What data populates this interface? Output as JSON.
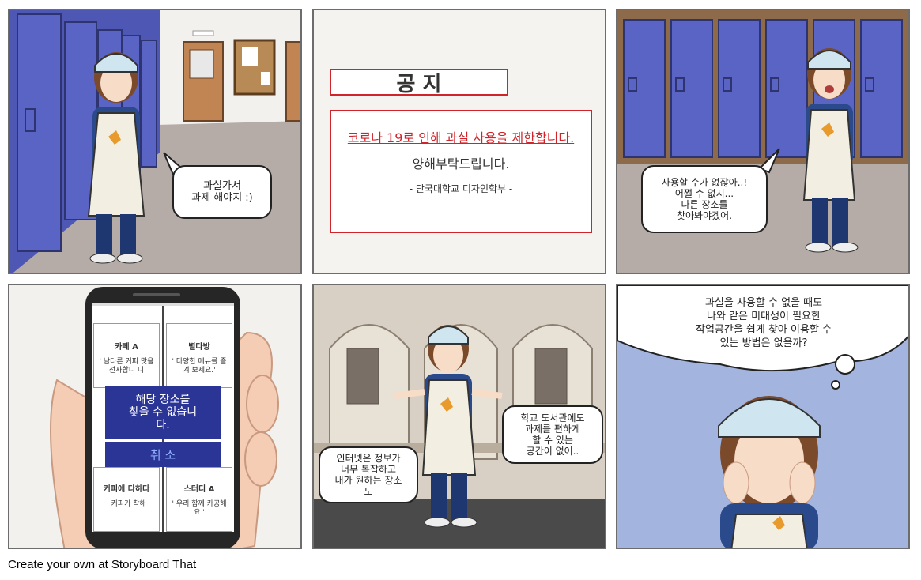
{
  "panel1": {
    "bubble": "과실가서\n과제 해야지 :)"
  },
  "panel2": {
    "title": "공 지",
    "notice_line": "코로나 19로 인해 과실 사용을 제한합니다.",
    "thanks": "양해부탁드립니다.",
    "signature": "- 단국대학교 디자인학부 -"
  },
  "panel3": {
    "bubble": "사용할 수가 없잖아..!\n어쩔 수 없지...\n다른 장소를\n찾아봐야겠어."
  },
  "panel4": {
    "cards": [
      {
        "title": "카페 A",
        "desc": "' 남다른 커피 맛을 선사합니\n니"
      },
      {
        "title": "별다방",
        "desc": "' 다양한 메뉴를 즐겨 보세요.'"
      },
      {
        "title": "커피에 다하다",
        "desc": "' 커피가 착해"
      },
      {
        "title": "스터디 A",
        "desc": "' 우리 함께 카공해요 '"
      }
    ],
    "dialog_message": "해당 장소를\n찾을 수 없습니\n다.",
    "dialog_cancel": "취 소"
  },
  "panel5": {
    "bubble_right": "학교 도서관에도\n과제를 편하게\n할 수 있는\n공간이 없어..",
    "bubble_left": "인터넷은 정보가\n너무 복잡하고\n내가 원하는 장소\n도"
  },
  "panel6": {
    "thought": "과실을 사용할 수 없을 때도\n나와 같은 미대생이 필요한\n작업공간을 쉽게 찾아 이용할 수\n있는 방법은 없을까?"
  },
  "footer": "Create your own at Storyboard That",
  "colors": {
    "locker": "#5a64c4",
    "wall": "#f2f1ee",
    "floor": "#b5aba7",
    "notice_red": "#d0242b",
    "dialog_blue": "#2b3595",
    "sky": "#a3b5de"
  }
}
